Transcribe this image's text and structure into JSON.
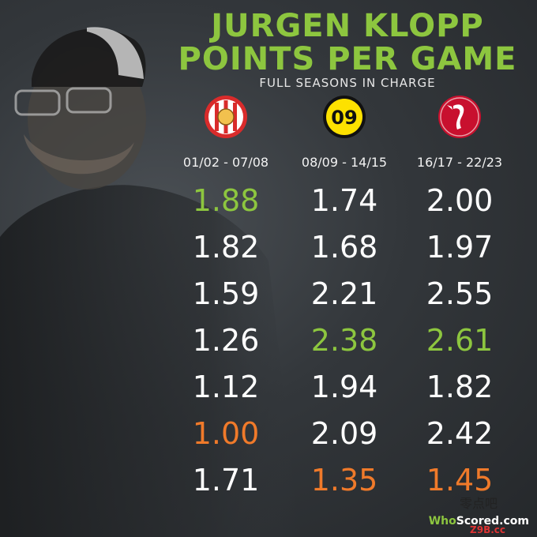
{
  "title_line1": "JURGEN KLOPP",
  "title_line2": "POINTS PER GAME",
  "subtitle": "FULL SEASONS IN CHARGE",
  "brand": {
    "prefix": "Who",
    "suffix": "Scored.com"
  },
  "watermark": {
    "cn": "零点吧",
    "url": "Z9B.cc"
  },
  "colors": {
    "best": "#8dc63f",
    "worst": "#f07a2a",
    "normal": "#ffffff",
    "title": "#8dc63f"
  },
  "chart_data": {
    "type": "table",
    "columns": [
      {
        "crest": "mainz-crest-icon",
        "crest_text": "",
        "season_range": "01/02 - 07/08",
        "values": [
          "1.88",
          "1.82",
          "1.59",
          "1.26",
          "1.12",
          "1.00",
          "1.71"
        ],
        "best": 0,
        "worst": 5
      },
      {
        "crest": "dortmund-crest-icon",
        "crest_text": "09",
        "season_range": "08/09 - 14/15",
        "values": [
          "1.74",
          "1.68",
          "2.21",
          "2.38",
          "1.94",
          "2.09",
          "1.35"
        ],
        "best": 3,
        "worst": 6
      },
      {
        "crest": "liverpool-crest-icon",
        "crest_text": "",
        "season_range": "16/17 - 22/23",
        "values": [
          "2.00",
          "1.97",
          "2.55",
          "2.61",
          "1.82",
          "2.42",
          "1.45"
        ],
        "best": 3,
        "worst": 6
      }
    ]
  }
}
